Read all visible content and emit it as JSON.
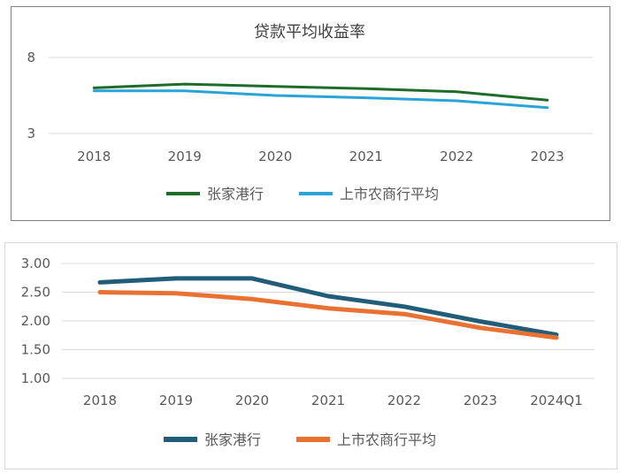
{
  "chart_data": [
    {
      "type": "line",
      "title": "贷款平均收益率",
      "categories": [
        "2018",
        "2019",
        "2020",
        "2021",
        "2022",
        "2023"
      ],
      "y_ticks": [
        "3",
        "8"
      ],
      "ylim": [
        3,
        8
      ],
      "grid": true,
      "legend_position": "bottom",
      "series": [
        {
          "name": "张家港行",
          "color": "#1e6b2a",
          "values": [
            6.0,
            6.25,
            6.1,
            5.95,
            5.75,
            5.2
          ]
        },
        {
          "name": "上市农商行平均",
          "color": "#2aa3d6",
          "values": [
            5.8,
            5.8,
            5.5,
            5.35,
            5.15,
            4.7
          ]
        }
      ]
    },
    {
      "type": "line",
      "title": "",
      "categories": [
        "2018",
        "2019",
        "2020",
        "2021",
        "2022",
        "2023",
        "2024Q1"
      ],
      "y_ticks": [
        "1.00",
        "1.50",
        "2.00",
        "2.50",
        "3.00"
      ],
      "ylim": [
        1.0,
        3.0
      ],
      "grid": true,
      "legend_position": "bottom",
      "series": [
        {
          "name": "张家港行",
          "color": "#215d79",
          "values": [
            2.67,
            2.74,
            2.74,
            2.43,
            2.25,
            1.99,
            1.76
          ]
        },
        {
          "name": "上市农商行平均",
          "color": "#e97132",
          "values": [
            2.5,
            2.48,
            2.38,
            2.22,
            2.12,
            1.88,
            1.71
          ]
        }
      ]
    }
  ]
}
